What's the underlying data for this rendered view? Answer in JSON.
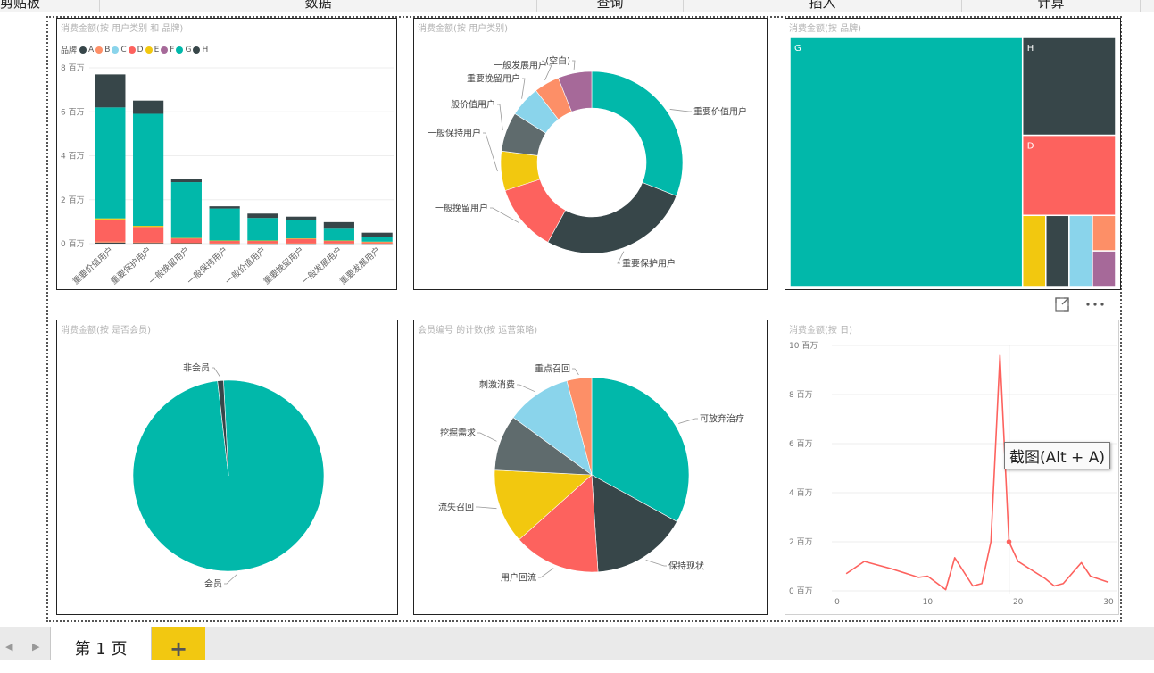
{
  "ribbon": {
    "groups": [
      {
        "label": "剪贴板"
      },
      {
        "label": "数据"
      },
      {
        "label": "查询"
      },
      {
        "label": "插入"
      },
      {
        "label": "计算"
      }
    ]
  },
  "colors": {
    "A": "#374649",
    "B": "#fd8f67",
    "C": "#8ad4eb",
    "D": "#fd625e",
    "E": "#f2c80f",
    "F": "#a66999",
    "G": "#01b8aa",
    "H": "#374649",
    "slate": "#5f6b6d",
    "line": "#fd625e"
  },
  "visuals": {
    "bar": {
      "title": "消费金额(按 用户类别 和 品牌)",
      "legend_title": "品牌",
      "legend": [
        "A",
        "B",
        "C",
        "D",
        "E",
        "F",
        "G",
        "H"
      ]
    },
    "donut": {
      "title": "消费金额(按 用户类别)"
    },
    "treemap": {
      "title": "消费金额(按 品牌)"
    },
    "member_pie": {
      "title": "消费金额(按 是否会员)"
    },
    "strategy_pie": {
      "title": "会员编号 的计数(按 运营策略)"
    },
    "line": {
      "title": "消费金额(按 日)"
    }
  },
  "chart_data": [
    {
      "type": "bar",
      "title": "消费金额(按 用户类别 和 品牌)",
      "categories": [
        "重要价值用户",
        "重要保护用户",
        "一般挽留用户",
        "一般保持用户",
        "一般价值用户",
        "重要挽留用户",
        "一般发展用户",
        "重要发展用户"
      ],
      "y_ticks": [
        "0 百万",
        "2 百万",
        "4 百万",
        "6 百万",
        "8 百万"
      ],
      "ylim": [
        0,
        8
      ],
      "series": [
        {
          "name": "A",
          "values": [
            0.05,
            0.03,
            0.02,
            0.01,
            0.01,
            0.01,
            0.01,
            0.01
          ]
        },
        {
          "name": "B",
          "values": [
            0.05,
            0.03,
            0.02,
            0.01,
            0.01,
            0.01,
            0.01,
            0.01
          ]
        },
        {
          "name": "D",
          "values": [
            1.0,
            0.7,
            0.2,
            0.1,
            0.1,
            0.2,
            0.1,
            0.05
          ]
        },
        {
          "name": "E",
          "values": [
            0.05,
            0.05,
            0.02,
            0.02,
            0.02,
            0.02,
            0.02,
            0.02
          ]
        },
        {
          "name": "G",
          "values": [
            5.05,
            5.1,
            2.54,
            1.46,
            1.03,
            0.84,
            0.54,
            0.21
          ]
        },
        {
          "name": "H",
          "values": [
            1.5,
            0.6,
            0.15,
            0.1,
            0.2,
            0.15,
            0.3,
            0.2
          ]
        }
      ]
    },
    {
      "type": "pie",
      "title": "消费金额(按 用户类别)",
      "labels": [
        "重要价值用户",
        "重要保护用户",
        "一般挽留用户",
        "一般保持用户",
        "一般价值用户",
        "重要挽留用户",
        "一般发展用户",
        "(空白)"
      ],
      "values": [
        31,
        27,
        12,
        7,
        7,
        5.5,
        4.5,
        6
      ],
      "colors": [
        "#01b8aa",
        "#374649",
        "#fd625e",
        "#f2c80f",
        "#5f6b6d",
        "#8ad4eb",
        "#fd8f67",
        "#a66999"
      ]
    },
    {
      "type": "treemap",
      "title": "消费金额(按 品牌)",
      "labels": [
        "G",
        "H",
        "D",
        "E",
        "A",
        "C",
        "B",
        "F"
      ],
      "values": [
        70,
        11,
        9,
        2,
        2,
        2,
        1,
        1
      ]
    },
    {
      "type": "pie",
      "title": "消费金额(按 是否会员)",
      "labels": [
        "会员",
        "非会员"
      ],
      "values": [
        99,
        1
      ],
      "colors": [
        "#01b8aa",
        "#374649"
      ]
    },
    {
      "type": "pie",
      "title": "会员编号 的计数(按 运营策略)",
      "labels": [
        "可放弃治疗",
        "保持现状",
        "用户回流",
        "流失召回",
        "挖掘需求",
        "刺激消费",
        "重点召回"
      ],
      "values": [
        32,
        15.5,
        14,
        12,
        9,
        10.5,
        4
      ],
      "colors": [
        "#01b8aa",
        "#374649",
        "#fd625e",
        "#f2c80f",
        "#5f6b6d",
        "#8ad4eb",
        "#fd8f67"
      ]
    },
    {
      "type": "line",
      "title": "消费金额(按 日)",
      "x_ticks": [
        "0",
        "10",
        "20",
        "30"
      ],
      "y_ticks": [
        "0 百万",
        "2 百万",
        "4 百万",
        "6 百万",
        "8 百万",
        "10 百万"
      ],
      "xlim": [
        0,
        30
      ],
      "ylim": [
        0,
        10
      ],
      "x": [
        1,
        3,
        6,
        9,
        10,
        12,
        13,
        15,
        16,
        17,
        18,
        19,
        20,
        23,
        24,
        25,
        27,
        28,
        30
      ],
      "y": [
        0.7,
        1.2,
        0.9,
        0.55,
        0.6,
        0.05,
        1.35,
        0.2,
        0.3,
        2.0,
        9.6,
        2.0,
        1.2,
        0.5,
        0.2,
        0.3,
        1.15,
        0.6,
        0.35
      ]
    }
  ],
  "tooltip": {
    "text": "截图(Alt + A)"
  },
  "pages": {
    "tabs": [
      {
        "label": "第 1 页"
      }
    ],
    "add_label": "+"
  }
}
